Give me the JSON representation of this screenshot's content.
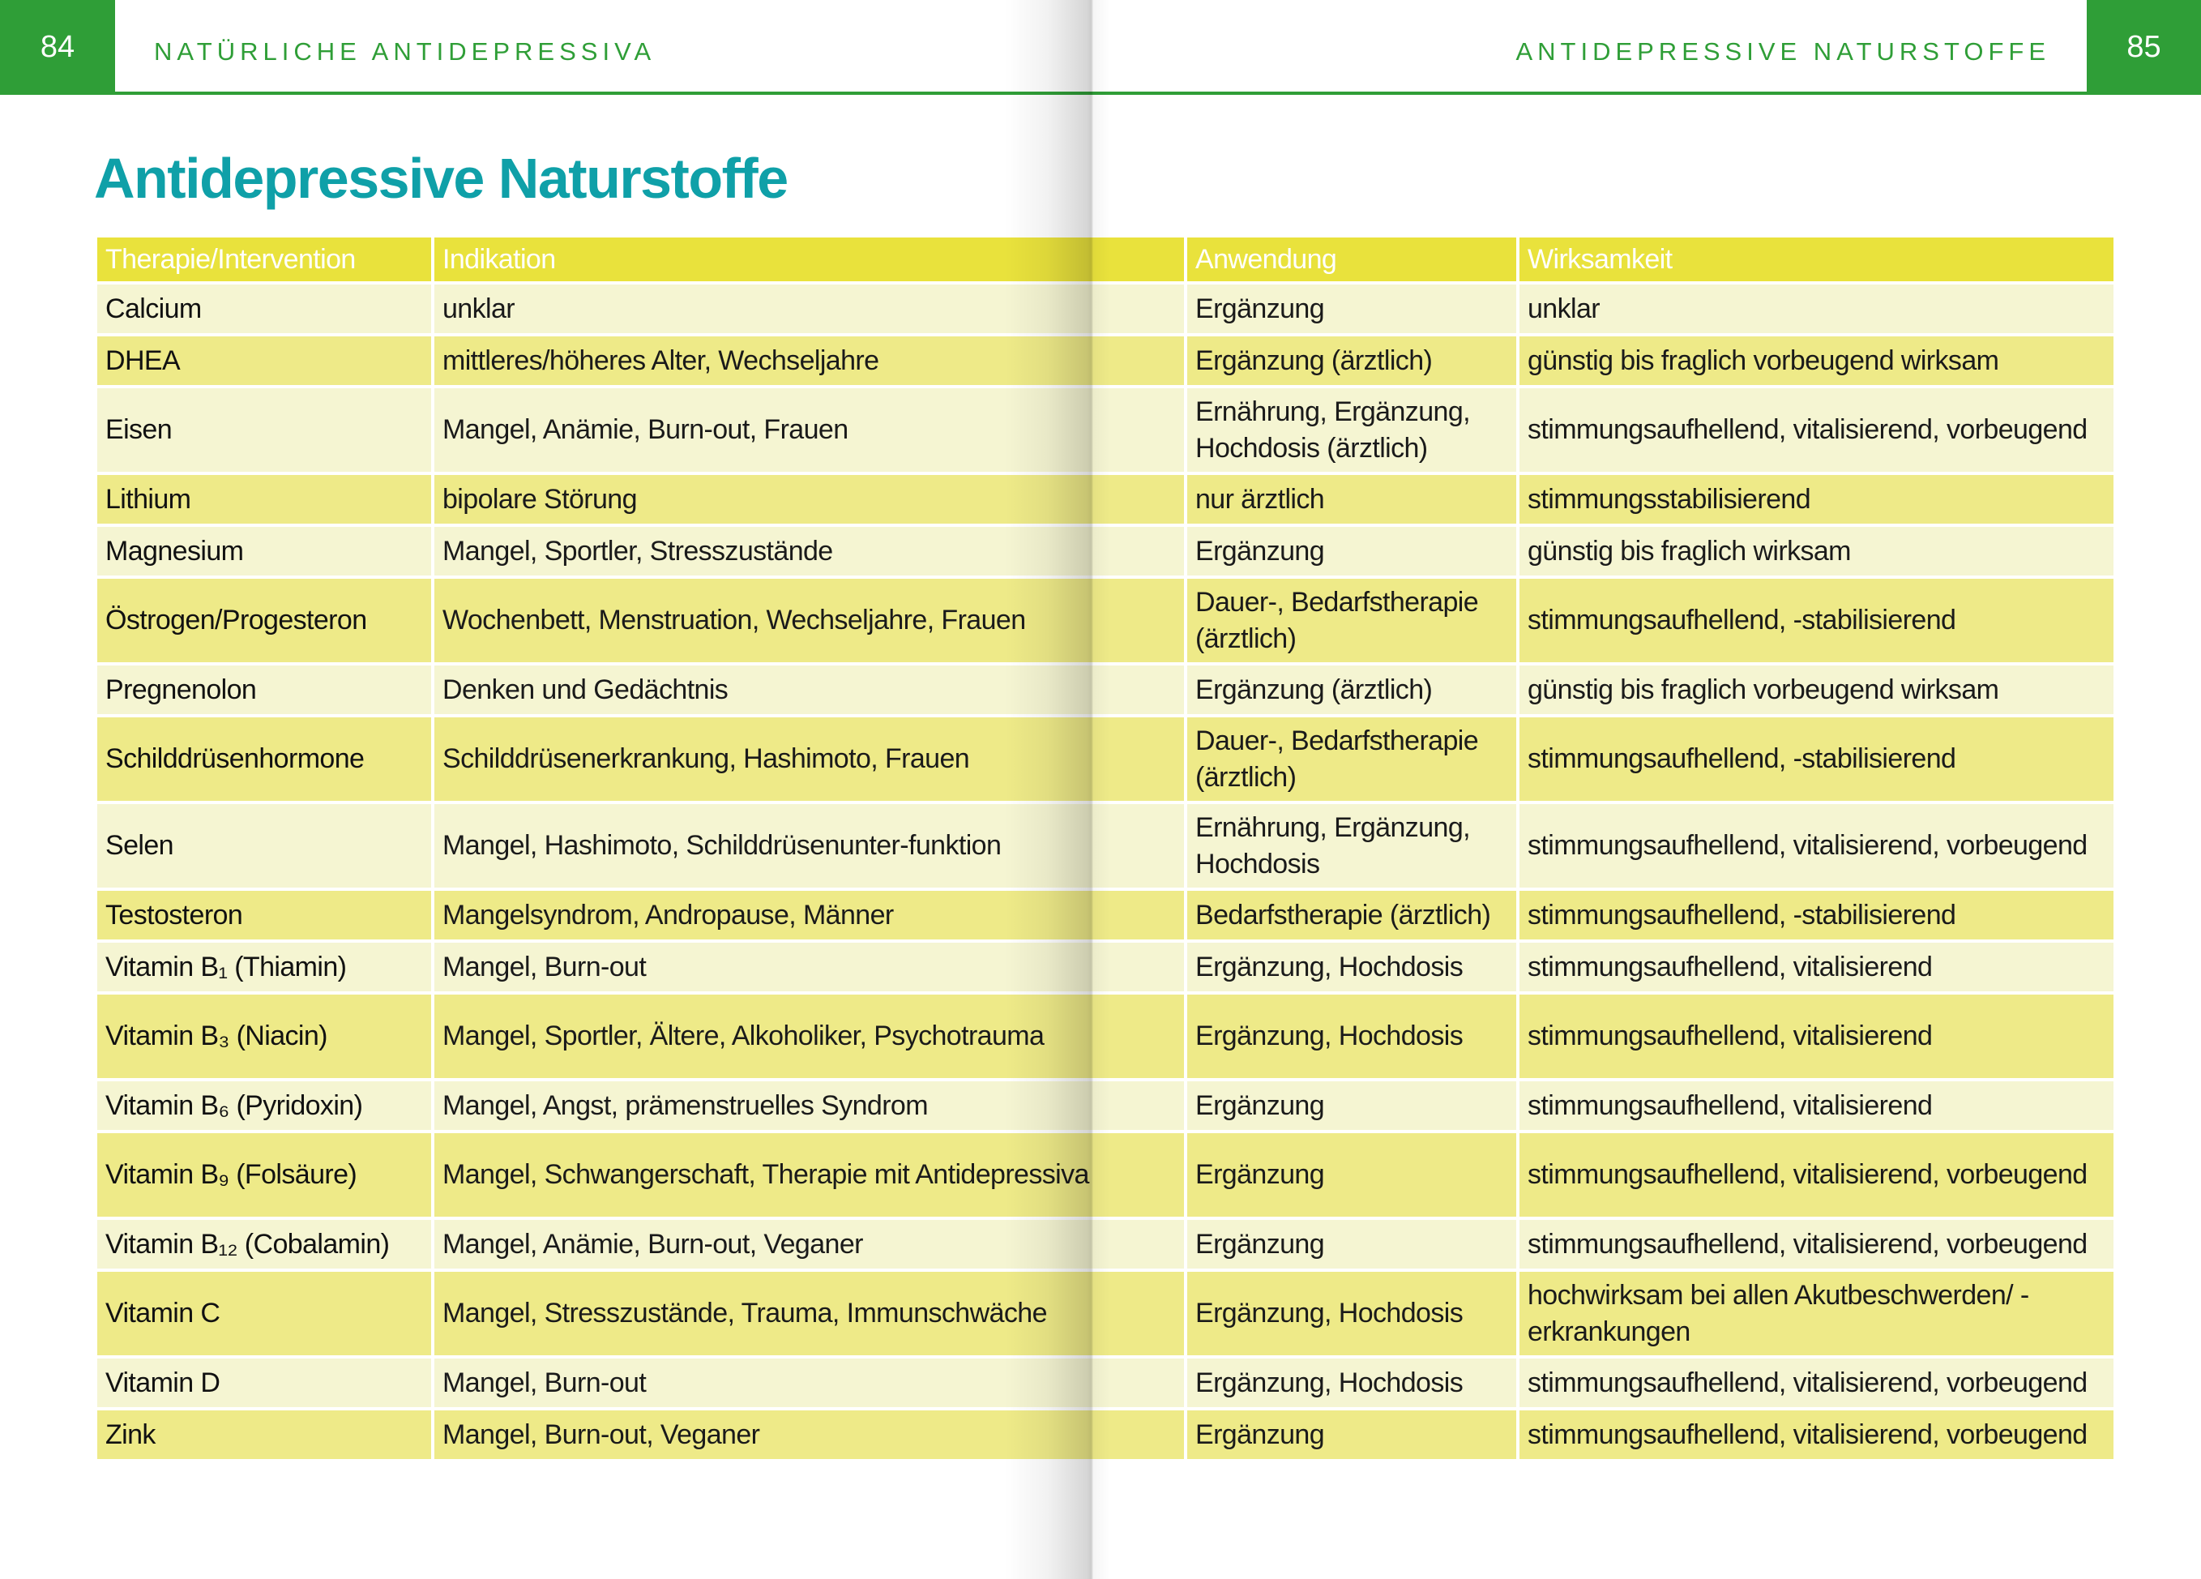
{
  "left_page": {
    "number": "84",
    "running_head": "NATÜRLICHE ANTIDEPRESSIVA"
  },
  "right_page": {
    "number": "85",
    "running_head": "ANTIDEPRESSIVE NATURSTOFFE"
  },
  "title": "Antidepressive Naturstoffe",
  "colors": {
    "green": "#2f9e37",
    "title": "#0fa0a8",
    "header_row": "#e9e23c",
    "row_light": "#f5f5d2",
    "row_dark": "#eeea88"
  },
  "table": {
    "headers": [
      "Therapie/Intervention",
      "Indikation",
      "Anwendung",
      "Wirksamkeit"
    ],
    "rows": [
      [
        "Calcium",
        "unklar",
        "Ergänzung",
        "unklar"
      ],
      [
        "DHEA",
        "mittleres/höheres Alter, Wechseljahre",
        "Ergänzung (ärztlich)",
        "günstig bis fraglich vorbeugend wirksam"
      ],
      [
        "Eisen",
        "Mangel, Anämie, Burn-out, Frauen",
        "Ernährung, Ergänzung, Hochdosis (ärztlich)",
        "stimmungsaufhellend, vitalisierend, vorbeugend"
      ],
      [
        "Lithium",
        "bipolare Störung",
        "nur ärztlich",
        "stimmungsstabilisierend"
      ],
      [
        "Magnesium",
        "Mangel, Sportler, Stresszustände",
        "Ergänzung",
        "günstig bis fraglich wirksam"
      ],
      [
        "Östrogen/Progesteron",
        "Wochenbett, Menstruation, Wechseljahre, Frauen",
        "Dauer-, Bedarfstherapie (ärztlich)",
        "stimmungsaufhellend, -stabilisierend"
      ],
      [
        "Pregnenolon",
        "Denken und Gedächtnis",
        "Ergänzung (ärztlich)",
        "günstig bis fraglich vorbeugend wirksam"
      ],
      [
        "Schilddrüsenhormone",
        "Schilddrüsenerkrankung, Hashimoto, Frauen",
        "Dauer-, Bedarfstherapie (ärztlich)",
        "stimmungsaufhellend, -stabilisierend"
      ],
      [
        "Selen",
        "Mangel, Hashimoto, Schilddrüsenunter-funktion",
        "Ernährung, Ergänzung, Hochdosis",
        "stimmungsaufhellend, vitalisierend, vorbeugend"
      ],
      [
        "Testosteron",
        "Mangelsyndrom, Andropause, Männer",
        "Bedarfstherapie (ärztlich)",
        "stimmungsaufhellend, -stabilisierend"
      ],
      [
        "Vitamin B₁ (Thiamin)",
        "Mangel, Burn-out",
        "Ergänzung, Hochdosis",
        "stimmungsaufhellend, vitalisierend"
      ],
      [
        "Vitamin B₃ (Niacin)",
        "Mangel, Sportler, Ältere, Alkoholiker, Psychotrauma",
        "Ergänzung, Hochdosis",
        "stimmungsaufhellend, vitalisierend"
      ],
      [
        "Vitamin B₆ (Pyridoxin)",
        "Mangel, Angst, prämenstruelles Syndrom",
        "Ergänzung",
        "stimmungsaufhellend, vitalisierend"
      ],
      [
        "Vitamin B₉ (Folsäure)",
        "Mangel, Schwangerschaft, Therapie mit Antidepressiva",
        "Ergänzung",
        "stimmungsaufhellend, vitalisierend, vorbeugend"
      ],
      [
        "Vitamin B₁₂ (Cobalamin)",
        "Mangel, Anämie, Burn-out, Veganer",
        "Ergänzung",
        "stimmungsaufhellend, vitalisierend, vorbeugend"
      ],
      [
        "Vitamin C",
        "Mangel, Stresszustände, Trauma, Immunschwäche",
        "Ergänzung, Hochdosis",
        "hochwirksam bei allen Akutbeschwerden/ -erkrankungen"
      ],
      [
        "Vitamin D",
        "Mangel, Burn-out",
        "Ergänzung, Hochdosis",
        "stimmungsaufhellend, vitalisierend, vorbeugend"
      ],
      [
        "Zink",
        "Mangel, Burn-out, Veganer",
        "Ergänzung",
        "stimmungsaufhellend, vitalisierend, vorbeugend"
      ]
    ]
  }
}
